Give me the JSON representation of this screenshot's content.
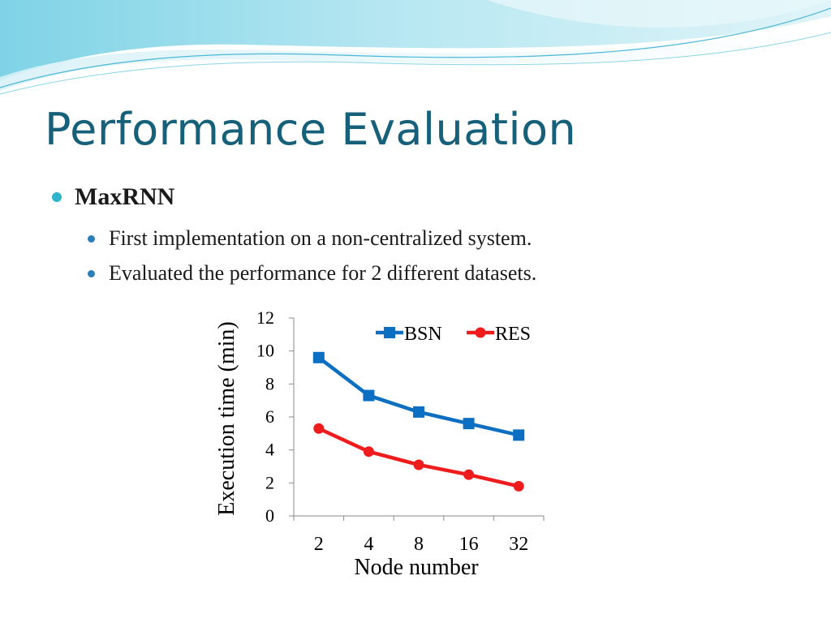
{
  "slide": {
    "title": "Performance Evaluation",
    "bullet": "MaxRNN",
    "sub_bullets": [
      "First implementation on a non-centralized system.",
      "Evaluated the performance for 2 different datasets."
    ]
  },
  "colors": {
    "title": "#17607a",
    "bullet_l1": "#2fb4c9",
    "bullet_l2": "#2a7fb8",
    "wave_light": "#bfeaf3",
    "wave_mid": "#6cc9e0"
  },
  "chart_data": {
    "type": "line",
    "categories": [
      "2",
      "4",
      "8",
      "16",
      "32"
    ],
    "series": [
      {
        "name": "BSN",
        "values": [
          9.6,
          7.3,
          6.3,
          5.6,
          4.9
        ],
        "color": "#0c6fc2",
        "marker": "square"
      },
      {
        "name": "RES",
        "values": [
          5.3,
          3.9,
          3.1,
          2.5,
          1.8
        ],
        "color": "#ee1c1c",
        "marker": "circle"
      }
    ],
    "xlabel": "Node number",
    "ylabel": "Execution time (min)",
    "ylim": [
      0,
      12
    ],
    "yticks": [
      "0",
      "2",
      "4",
      "6",
      "8",
      "10",
      "12"
    ],
    "grid": false,
    "legend": "top-right"
  }
}
